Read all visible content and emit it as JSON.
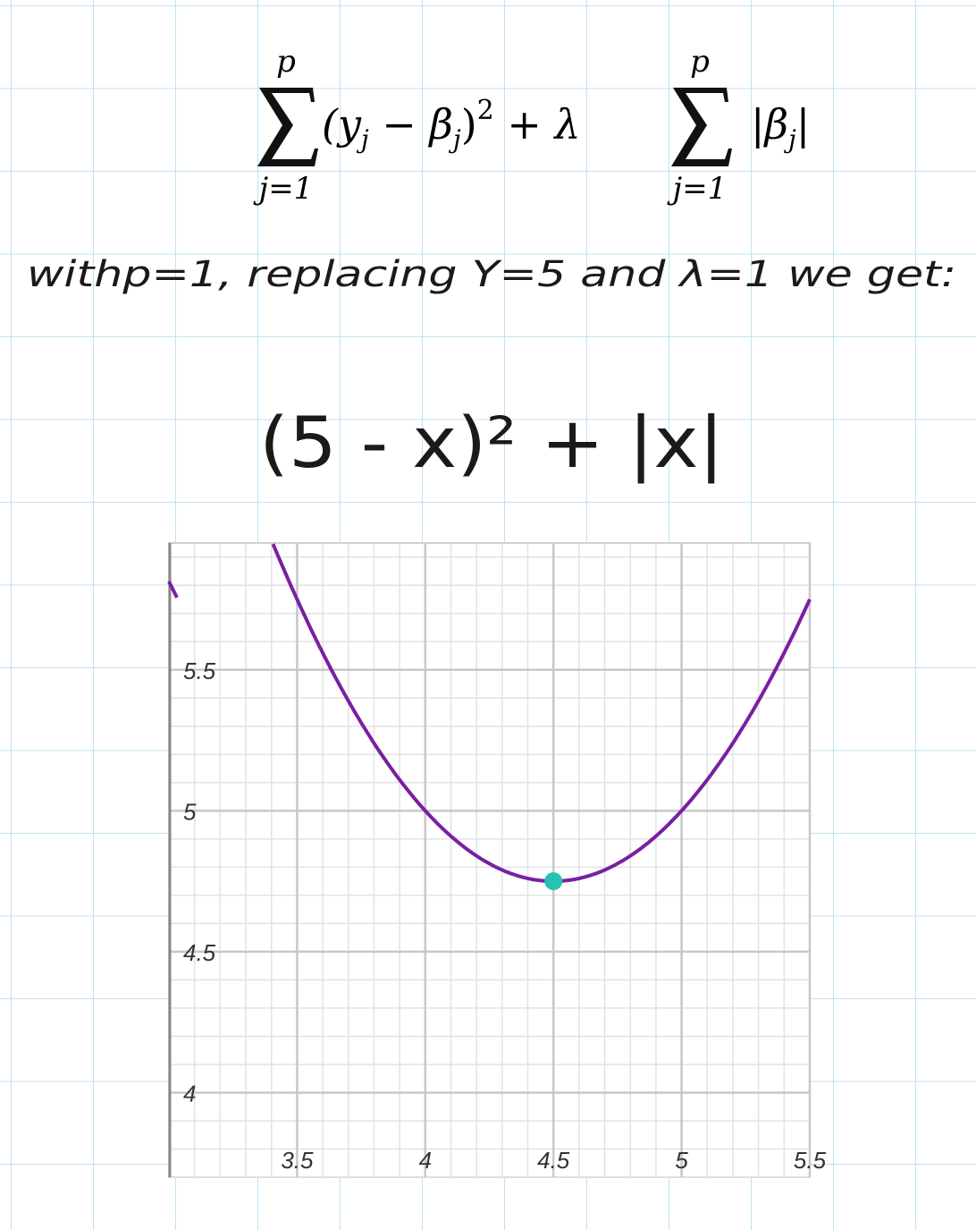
{
  "formula": {
    "sum1_top": "p",
    "sum1_bottom": "j=1",
    "term1": "(y",
    "term1_sub": "j",
    "minus": " − β",
    "minus_sub": "j",
    "close_sq": ")",
    "exp": "2",
    "plus_lambda": " + λ",
    "sum2_top": "p",
    "sum2_bottom": "j=1",
    "abs_open": "|β",
    "abs_sub": "j",
    "abs_close": "|"
  },
  "note": {
    "line": "withp=1, replacing Y=5 and λ=1 we get:",
    "expression": "(5 - x)² + |x|"
  },
  "chart_data": {
    "type": "line",
    "function": "(5 - x)^2 + |x|",
    "xlim": [
      3.0,
      5.5
    ],
    "ylim": [
      3.7,
      5.95
    ],
    "x_ticks": [
      3.5,
      4,
      4.5,
      5,
      5.5
    ],
    "x_tick_labels": [
      "3.5",
      "4",
      "4.5",
      "5",
      "5.5"
    ],
    "y_ticks": [
      4,
      4.5,
      5,
      5.5
    ],
    "y_tick_labels": [
      "4",
      "4.5",
      "5",
      "5.5"
    ],
    "series": [
      {
        "x": [
          3.3,
          3.5,
          3.75,
          4.0,
          4.25,
          4.5,
          4.75,
          5.0,
          5.25,
          5.5
        ],
        "y": [
          6.19,
          5.75,
          5.3125,
          5.0,
          4.8125,
          4.75,
          4.8125,
          5.0,
          5.3125,
          5.75
        ]
      }
    ],
    "highlight_point": {
      "x": 4.5,
      "y": 4.75
    },
    "colors": {
      "curve": "#7a1fa2",
      "point": "#26c2b2",
      "grid_major": "#c8c8c8",
      "grid_minor": "#e2e2e2"
    },
    "grid": true
  }
}
